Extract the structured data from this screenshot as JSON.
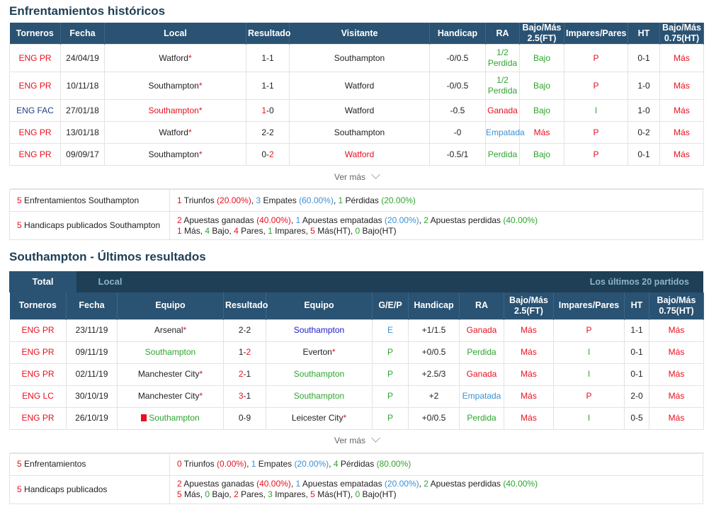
{
  "h2h": {
    "title": "Enfrentamientos históricos",
    "headers": [
      "Torneros",
      "Fecha",
      "Local",
      "Resultado",
      "Visitante",
      "Handicap",
      "RA",
      "Bajo/Más 2.5(FT)",
      "Impares/Pares",
      "HT",
      "Bajo/Más 0.75(HT)"
    ],
    "rows": [
      {
        "t": "ENG PR",
        "d": "24/04/19",
        "home": "Watford",
        "r1": "1",
        "r2": "1",
        "away": "Southampton",
        "hc": "-0/0.5",
        "ra": "1/2 Perdida",
        "ou": "Bajo",
        "oe": "P",
        "ht": "0-1",
        "ouht": "Más"
      },
      {
        "t": "ENG PR",
        "d": "10/11/18",
        "home": "Southampton",
        "r1": "1",
        "r2": "1",
        "away": "Watford",
        "hc": "-0/0.5",
        "ra": "1/2 Perdida",
        "ou": "Bajo",
        "oe": "P",
        "ht": "1-0",
        "ouht": "Más"
      },
      {
        "t": "ENG FAC",
        "d": "27/01/18",
        "home": "Southampton",
        "r1": "1",
        "r2": "0",
        "away": "Watford",
        "hc": "-0.5",
        "ra": "Ganada",
        "ou": "Bajo",
        "oe": "I",
        "ht": "1-0",
        "ouht": "Más"
      },
      {
        "t": "ENG PR",
        "d": "13/01/18",
        "home": "Watford",
        "r1": "2",
        "r2": "2",
        "away": "Southampton",
        "hc": "-0",
        "ra": "Empatada",
        "ou": "Más",
        "oe": "P",
        "ht": "0-2",
        "ouht": "Más"
      },
      {
        "t": "ENG PR",
        "d": "09/09/17",
        "home": "Southampton",
        "r1": "0",
        "r2": "2",
        "away": "Watford",
        "hc": "-0.5/1",
        "ra": "Perdida",
        "ou": "Bajo",
        "oe": "P",
        "ht": "0-1",
        "ouht": "Más"
      }
    ],
    "more": "Ver más",
    "sum1_label_n": "5",
    "sum1_label": " Enfrentamientos Southampton",
    "sum1": {
      "w": "1",
      "wt": " Triunfos ",
      "wp": "(20.00%)",
      "d": "3",
      "dt": " Empates ",
      "dp": "(60.00%)",
      "l": "1",
      "lt": " Pérdidas ",
      "lp": "(20.00%)"
    },
    "sum2_label_n": "5",
    "sum2_label": " Handicaps publicados Southampton",
    "sum2a": {
      "w": "2",
      "wt": " Apuestas ganadas ",
      "wp": "(40.00%)",
      "d": "1",
      "dt": " Apuestas empatadas ",
      "dp": "(20.00%)",
      "l": "2",
      "lt": " Apuestas perdidas ",
      "lp": "(40.00%)"
    },
    "sum2b": {
      "a": "1",
      "at": " Más, ",
      "b": "4",
      "bt": " Bajo, ",
      "c": "4",
      "ct": " Pares, ",
      "d": "1",
      "dt": " Impares, ",
      "e": "5",
      "et": " Más(HT), ",
      "f": "0",
      "ft": " Bajo(HT)"
    }
  },
  "last": {
    "title": "Southampton - Últimos resultados",
    "tab_total": "Total",
    "tab_local": "Local",
    "tab_right": "Los últimos 20 partidos",
    "headers": [
      "Torneros",
      "Fecha",
      "Equipo",
      "Resultado",
      "Equipo",
      "G/E/P",
      "Handicap",
      "RA",
      "Bajo/Más 2.5(FT)",
      "Impares/Pares",
      "HT",
      "Bajo/Más 0.75(HT)"
    ],
    "rows": [
      {
        "t": "ENG PR",
        "d": "23/11/19",
        "home": "Arsenal",
        "r1": "2",
        "r2": "2",
        "away": "Southampton",
        "gep": "E",
        "hc": "+1/1.5",
        "ra": "Ganada",
        "ou": "Más",
        "oe": "P",
        "ht": "1-1",
        "ouht": "Más"
      },
      {
        "t": "ENG PR",
        "d": "09/11/19",
        "home": "Southampton",
        "r1": "1",
        "r2": "2",
        "away": "Everton",
        "gep": "P",
        "hc": "+0/0.5",
        "ra": "Perdida",
        "ou": "Más",
        "oe": "I",
        "ht": "0-1",
        "ouht": "Más"
      },
      {
        "t": "ENG PR",
        "d": "02/11/19",
        "home": "Manchester City",
        "r1": "2",
        "r2": "1",
        "away": "Southampton",
        "gep": "P",
        "hc": "+2.5/3",
        "ra": "Ganada",
        "ou": "Más",
        "oe": "I",
        "ht": "0-1",
        "ouht": "Más"
      },
      {
        "t": "ENG LC",
        "d": "30/10/19",
        "home": "Manchester City",
        "r1": "3",
        "r2": "1",
        "away": "Southampton",
        "gep": "P",
        "hc": "+2",
        "ra": "Empatada",
        "ou": "Más",
        "oe": "P",
        "ht": "2-0",
        "ouht": "Más"
      },
      {
        "t": "ENG PR",
        "d": "26/10/19",
        "home": "Southampton",
        "r1": "0",
        "r2": "9",
        "away": "Leicester City",
        "gep": "P",
        "hc": "+0/0.5",
        "ra": "Perdida",
        "ou": "Más",
        "oe": "I",
        "ht": "0-5",
        "ouht": "Más"
      }
    ],
    "more": "Ver más",
    "sum1_label_n": "5",
    "sum1_label": " Enfrentamientos",
    "sum1": {
      "w": "0",
      "wt": " Triunfos ",
      "wp": "(0.00%)",
      "d": "1",
      "dt": " Empates ",
      "dp": "(20.00%)",
      "l": "4",
      "lt": " Pérdidas ",
      "lp": "(80.00%)"
    },
    "sum2_label_n": "5",
    "sum2_label": " Handicaps publicados",
    "sum2a": {
      "w": "2",
      "wt": " Apuestas ganadas ",
      "wp": "(40.00%)",
      "d": "1",
      "dt": " Apuestas empatadas ",
      "dp": "(20.00%)",
      "l": "2",
      "lt": " Apuestas perdidas ",
      "lp": "(40.00%)"
    },
    "sum2b": {
      "a": "5",
      "at": " Más, ",
      "b": "0",
      "bt": " Bajo, ",
      "c": "2",
      "ct": " Pares, ",
      "d": "3",
      "dt": " Impares, ",
      "e": "5",
      "et": " Más(HT), ",
      "f": "0",
      "ft": " Bajo(HT)"
    }
  }
}
